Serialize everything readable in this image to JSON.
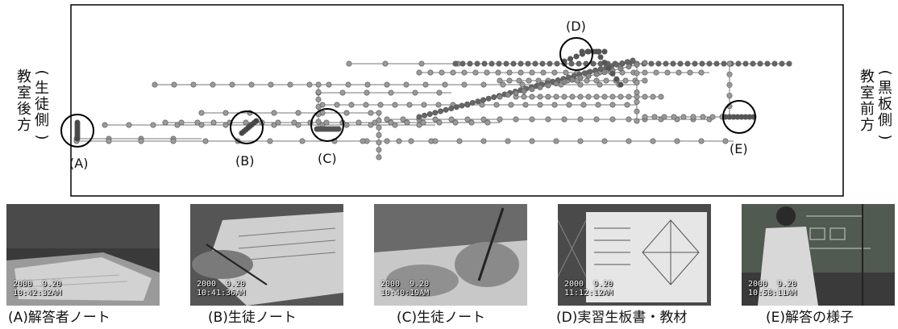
{
  "diagram": {
    "left_label": {
      "paren_open": "(",
      "col1": [
        "生",
        "徒",
        "側"
      ],
      "paren_close": ")",
      "col2": [
        "教",
        "室",
        "後",
        "方"
      ]
    },
    "right_label": {
      "paren_open": "(",
      "col1": [
        "黒",
        "板",
        "側"
      ],
      "paren_close": ")",
      "col2": [
        "教",
        "室",
        "前",
        "方"
      ]
    },
    "markers": [
      {
        "label": "(A)"
      },
      {
        "label": "(B)"
      },
      {
        "label": "(C)"
      },
      {
        "label": "(D)"
      },
      {
        "label": "(E)"
      }
    ]
  },
  "photos": [
    {
      "date": "2000  9.20",
      "time": "10:42:32AM",
      "caption": "(A)解答者ノート"
    },
    {
      "date": "2000  9.20",
      "time": "10:41:36AM",
      "caption": "(B)生徒ノート"
    },
    {
      "date": "2000  9.20",
      "time": "10:40:19AM",
      "caption": "(C)生徒ノート"
    },
    {
      "date": "2000  9.20",
      "time": "11:12:12AM",
      "caption": "(D)実習生板書・教材"
    },
    {
      "date": "2000  9.20",
      "time": "10:58:11AM",
      "caption": "(E)解答の様子"
    }
  ]
}
